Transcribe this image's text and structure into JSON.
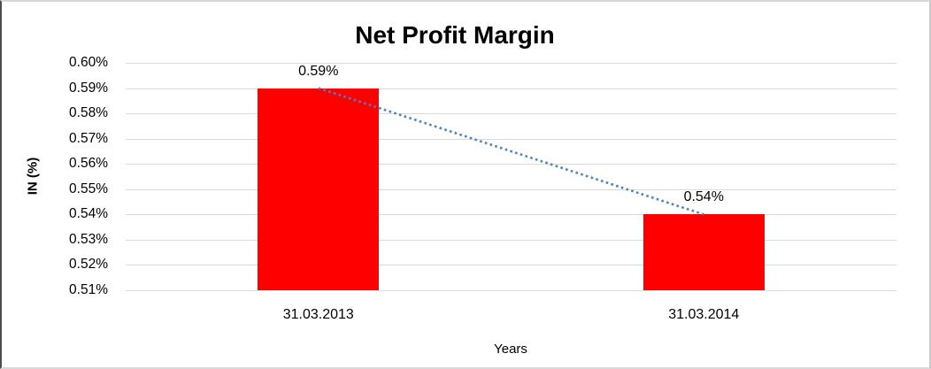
{
  "chart_data": {
    "type": "bar",
    "title": "Net Profit Margin",
    "xlabel": "Years",
    "ylabel": "IN (%)",
    "categories": [
      "31.03.2013",
      "31.03.2014"
    ],
    "series": [
      {
        "name": "Net Profit Margin",
        "values": [
          0.59,
          0.54
        ],
        "data_labels": [
          "0.59%",
          "0.54%"
        ]
      }
    ],
    "trendline": {
      "style": "dotted",
      "from": 0.59,
      "to": 0.54,
      "color": "#4f81bd"
    },
    "y_ticks": [
      "0.60%",
      "0.59%",
      "0.58%",
      "0.57%",
      "0.56%",
      "0.55%",
      "0.54%",
      "0.53%",
      "0.52%",
      "0.51%"
    ],
    "ylim": [
      0.51,
      0.6
    ],
    "grid": true,
    "legend_position": "none",
    "colors": {
      "bar": "#ff0000",
      "trendline": "#4f81bd",
      "gridline": "#d9d9d9",
      "text": "#000000"
    }
  }
}
